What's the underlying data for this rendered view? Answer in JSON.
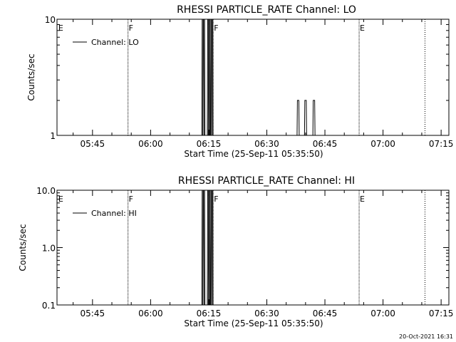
{
  "chart_data": [
    {
      "type": "line",
      "title": "RHESSI PARTICLE_RATE Channel: LO",
      "xlabel": "Start Time (25-Sep-11 05:35:50)",
      "ylabel": "Counts/sec",
      "yscale": "log",
      "ylim": [
        1,
        10
      ],
      "ytick_values": [
        1,
        10
      ],
      "ytick_labels": [
        "1",
        "10"
      ],
      "xlim": [
        "05:35:50",
        "07:17:00"
      ],
      "xtick_labels": [
        "05:45",
        "06:00",
        "06:15",
        "06:30",
        "06:45",
        "07:00",
        "07:15"
      ],
      "legend": {
        "position": "top-left",
        "entries": [
          "Channel: LO"
        ]
      },
      "flag_markers": [
        {
          "time": "05:36:00",
          "label": "E",
          "line": false
        },
        {
          "time": "05:54:10",
          "label": "F",
          "line": true
        },
        {
          "time": "06:16:10",
          "label": "F",
          "line": true
        },
        {
          "time": "06:53:50",
          "label": "E",
          "line": true
        },
        {
          "time": "07:10:50",
          "label": "",
          "line": "dotted"
        }
      ],
      "series": [
        {
          "name": "Channel: LO",
          "points": [
            [
              "06:13:30",
              10
            ],
            [
              "06:13:45",
              10
            ],
            [
              "06:14:55",
              10
            ],
            [
              "06:15:10",
              10
            ],
            [
              "06:15:35",
              10
            ],
            [
              "06:15:50",
              10
            ],
            [
              "06:38:05",
              2
            ],
            [
              "06:40:00",
              2
            ],
            [
              "06:42:10",
              2
            ]
          ]
        }
      ]
    },
    {
      "type": "line",
      "title": "RHESSI PARTICLE_RATE Channel: HI",
      "xlabel": "Start Time (25-Sep-11 05:35:50)",
      "ylabel": "Counts/sec",
      "yscale": "log",
      "ylim": [
        0.1,
        10
      ],
      "ytick_values": [
        0.1,
        1,
        10
      ],
      "ytick_labels": [
        "0.1",
        "1.0",
        "10.0"
      ],
      "xlim": [
        "05:35:50",
        "07:17:00"
      ],
      "xtick_labels": [
        "05:45",
        "06:00",
        "06:15",
        "06:30",
        "06:45",
        "07:00",
        "07:15"
      ],
      "legend": {
        "position": "top-left",
        "entries": [
          "Channel: HI"
        ]
      },
      "flag_markers": [
        {
          "time": "05:36:00",
          "label": "E",
          "line": false
        },
        {
          "time": "05:54:10",
          "label": "F",
          "line": true
        },
        {
          "time": "06:16:10",
          "label": "F",
          "line": true
        },
        {
          "time": "06:53:50",
          "label": "E",
          "line": true
        },
        {
          "time": "07:10:50",
          "label": "",
          "line": "dotted"
        }
      ],
      "series": [
        {
          "name": "Channel: HI",
          "points": [
            [
              "06:13:30",
              10
            ],
            [
              "06:13:45",
              10
            ],
            [
              "06:14:55",
              10
            ],
            [
              "06:15:10",
              10
            ],
            [
              "06:15:35",
              10
            ],
            [
              "06:15:50",
              10
            ]
          ]
        }
      ]
    }
  ],
  "footer": {
    "timestamp": "20-Oct-2021 16:31"
  }
}
